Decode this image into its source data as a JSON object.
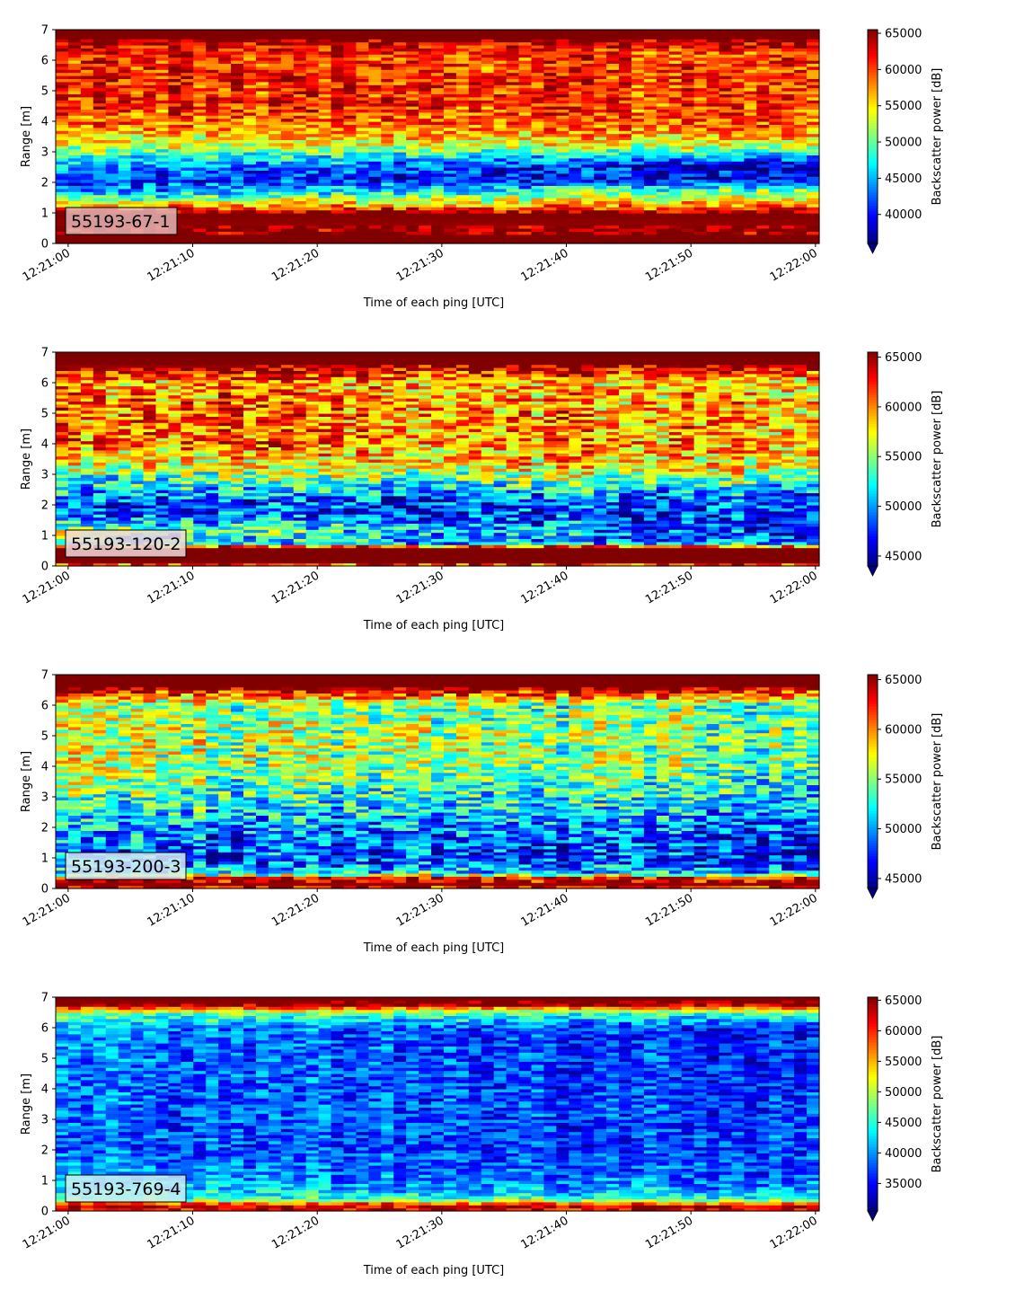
{
  "figure": {
    "background": "#ffffff"
  },
  "chart_data": [
    {
      "type": "heatmap",
      "label": "55193-67-1",
      "label_box_color": "#e3b4b4",
      "xlabel": "Time of each ping [UTC]",
      "ylabel": "Range [m]",
      "xticks": [
        "12:21:00",
        "12:21:10",
        "12:21:20",
        "12:21:30",
        "12:21:40",
        "12:21:50",
        "12:22:00"
      ],
      "xlim_seconds": [
        -1,
        60.3
      ],
      "yticks": [
        "0",
        "1",
        "2",
        "3",
        "4",
        "5",
        "6",
        "7"
      ],
      "ylim": [
        0,
        7
      ],
      "colorbar": {
        "label": "Backscatter power [dB]",
        "ticks": [
          "40000",
          "45000",
          "50000",
          "55000",
          "60000",
          "65000"
        ],
        "range": [
          36000,
          65500
        ],
        "extend": "min"
      },
      "colormap": "jet",
      "profile": {
        "range": [
          0,
          0.25,
          0.3,
          1.0,
          1.25,
          1.7,
          2.1,
          2.6,
          3.2,
          3.8,
          4.5,
          5.5,
          6.3,
          6.7,
          7.0
        ],
        "start": [
          65500,
          65500,
          64500,
          65500,
          56000,
          44000,
          41500,
          45500,
          53000,
          58000,
          61000,
          61500,
          61000,
          65500,
          65500
        ],
        "end": [
          65500,
          65500,
          64500,
          65500,
          58000,
          52000,
          38500,
          38500,
          53000,
          59000,
          60000,
          60000,
          60000,
          65500,
          65500
        ]
      }
    },
    {
      "type": "heatmap",
      "label": "55193-120-2",
      "label_box_color": "#f2d9d9",
      "xlabel": "Time of each ping [UTC]",
      "ylabel": "Range [m]",
      "xticks": [
        "12:21:00",
        "12:21:10",
        "12:21:20",
        "12:21:30",
        "12:21:40",
        "12:21:50",
        "12:22:00"
      ],
      "xlim_seconds": [
        -1,
        60.3
      ],
      "yticks": [
        "0",
        "1",
        "2",
        "3",
        "4",
        "5",
        "6",
        "7"
      ],
      "ylim": [
        0,
        7
      ],
      "colorbar": {
        "label": "Backscatter power [dB]",
        "ticks": [
          "45000",
          "50000",
          "55000",
          "60000",
          "65000"
        ],
        "range": [
          44000,
          65500
        ],
        "extend": "min"
      },
      "colormap": "jet",
      "profile": {
        "range": [
          0,
          0.1,
          0.6,
          0.75,
          1.2,
          1.7,
          2.2,
          2.8,
          3.3,
          4.0,
          5.0,
          6.0,
          6.6,
          7.0
        ],
        "start": [
          58000,
          65500,
          65500,
          52000,
          56000,
          48000,
          49000,
          53000,
          57000,
          61000,
          61500,
          60000,
          65500,
          65500
        ],
        "end": [
          58000,
          65500,
          65500,
          50000,
          47000,
          47000,
          48500,
          54000,
          58000,
          59000,
          59000,
          58000,
          65500,
          65500
        ]
      }
    },
    {
      "type": "heatmap",
      "label": "55193-200-3",
      "label_box_color": "#d8ecf2",
      "xlabel": "Time of each ping [UTC]",
      "ylabel": "Range [m]",
      "xticks": [
        "12:21:00",
        "12:21:10",
        "12:21:20",
        "12:21:30",
        "12:21:40",
        "12:21:50",
        "12:22:00"
      ],
      "xlim_seconds": [
        -1,
        60.3
      ],
      "yticks": [
        "0",
        "1",
        "2",
        "3",
        "4",
        "5",
        "6",
        "7"
      ],
      "ylim": [
        0,
        7
      ],
      "colorbar": {
        "label": "Backscatter power [dB]",
        "ticks": [
          "45000",
          "50000",
          "55000",
          "60000",
          "65000"
        ],
        "range": [
          44000,
          65500
        ],
        "extend": "min"
      },
      "colormap": "jet",
      "profile": {
        "range": [
          0,
          0.1,
          0.35,
          0.5,
          0.9,
          1.5,
          2.2,
          3.0,
          4.0,
          5.0,
          6.0,
          6.6,
          7.0
        ],
        "start": [
          62000,
          65500,
          63000,
          52000,
          49000,
          48500,
          50500,
          53000,
          55500,
          56000,
          55000,
          65500,
          65500
        ],
        "end": [
          62000,
          65500,
          63000,
          51000,
          47000,
          47500,
          49000,
          51500,
          54000,
          54500,
          53500,
          65500,
          65500
        ]
      }
    },
    {
      "type": "heatmap",
      "label": "55193-769-4",
      "label_box_color": "#cdeef5",
      "xlabel": "Time of each ping [UTC]",
      "ylabel": "Range [m]",
      "xticks": [
        "12:21:00",
        "12:21:10",
        "12:21:20",
        "12:21:30",
        "12:21:40",
        "12:21:50",
        "12:22:00"
      ],
      "xlim_seconds": [
        -1,
        60.3
      ],
      "yticks": [
        "0",
        "1",
        "2",
        "3",
        "4",
        "5",
        "6",
        "7"
      ],
      "ylim": [
        0,
        7
      ],
      "colorbar": {
        "label": "Backscatter power [dB]",
        "ticks": [
          "35000",
          "40000",
          "45000",
          "50000",
          "55000",
          "60000",
          "65000"
        ],
        "range": [
          30500,
          65500
        ],
        "extend": "min"
      },
      "colormap": "jet",
      "profile": {
        "range": [
          0,
          0.1,
          0.25,
          0.4,
          0.7,
          1.2,
          2.0,
          3.0,
          4.0,
          5.0,
          6.0,
          6.5,
          6.75,
          7.0
        ],
        "start": [
          58000,
          65500,
          58000,
          46000,
          43000,
          40000,
          37500,
          38000,
          38500,
          39000,
          40000,
          48000,
          65000,
          65500
        ],
        "end": [
          58000,
          65500,
          58000,
          45000,
          40000,
          37500,
          37000,
          37000,
          36500,
          36000,
          35500,
          46000,
          64000,
          65500
        ]
      }
    }
  ]
}
